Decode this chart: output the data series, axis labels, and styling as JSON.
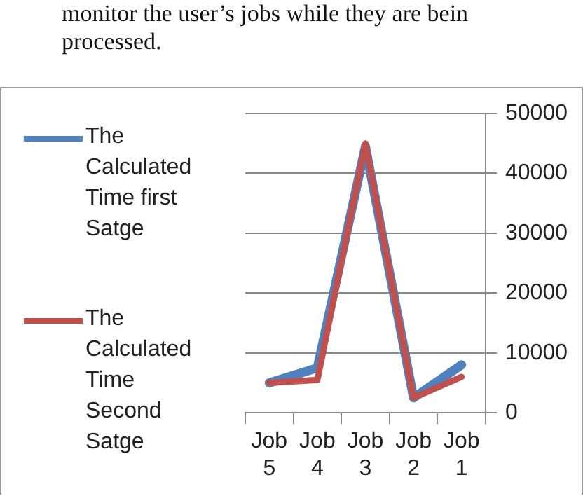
{
  "chart_data": {
    "type": "line",
    "annotations": [
      "monitor the user’s jobs while they are bein",
      "processed."
    ],
    "categories": [
      "Job 5",
      "Job 4",
      "Job 3",
      "Job 2",
      "Job 1"
    ],
    "series": [
      {
        "name": "The Calculated Time first Satge",
        "color": "#4f81bd",
        "values": [
          5000,
          7500,
          44500,
          2500,
          8000
        ]
      },
      {
        "name": "The Calculated Time Second Satge",
        "color": "#c0504d",
        "values": [
          5000,
          5500,
          45000,
          2500,
          6000
        ]
      }
    ],
    "ylim": [
      0,
      50000
    ],
    "yticks": [
      0,
      10000,
      20000,
      30000,
      40000,
      50000
    ],
    "grid": "y",
    "legend": "left",
    "marker": "none",
    "line_style": "solid"
  }
}
